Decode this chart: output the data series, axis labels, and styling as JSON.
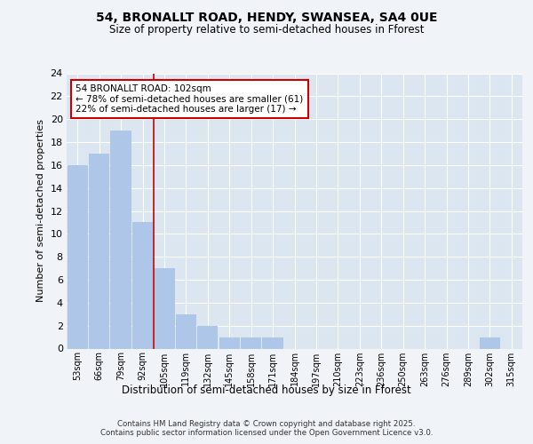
{
  "title1": "54, BRONALLT ROAD, HENDY, SWANSEA, SA4 0UE",
  "title2": "Size of property relative to semi-detached houses in Fforest",
  "xlabel": "Distribution of semi-detached houses by size in Fforest",
  "ylabel": "Number of semi-detached properties",
  "categories": [
    "53sqm",
    "66sqm",
    "79sqm",
    "92sqm",
    "105sqm",
    "119sqm",
    "132sqm",
    "145sqm",
    "158sqm",
    "171sqm",
    "184sqm",
    "197sqm",
    "210sqm",
    "223sqm",
    "236sqm",
    "250sqm",
    "263sqm",
    "276sqm",
    "289sqm",
    "302sqm",
    "315sqm"
  ],
  "values": [
    16,
    17,
    19,
    11,
    7,
    3,
    2,
    1,
    1,
    1,
    0,
    0,
    0,
    0,
    0,
    0,
    0,
    0,
    0,
    1,
    0
  ],
  "bar_color": "#aec6e8",
  "bar_edge_color": "#aec6e8",
  "vline_color": "#cc0000",
  "annotation_text": "54 BRONALLT ROAD: 102sqm\n← 78% of semi-detached houses are smaller (61)\n22% of semi-detached houses are larger (17) →",
  "annotation_box_color": "#cc0000",
  "ylim": [
    0,
    24
  ],
  "yticks": [
    0,
    2,
    4,
    6,
    8,
    10,
    12,
    14,
    16,
    18,
    20,
    22,
    24
  ],
  "fig_background": "#f0f4f8",
  "plot_background": "#dce6f0",
  "grid_color": "#ffffff",
  "footer": "Contains HM Land Registry data © Crown copyright and database right 2025.\nContains public sector information licensed under the Open Government Licence v3.0."
}
